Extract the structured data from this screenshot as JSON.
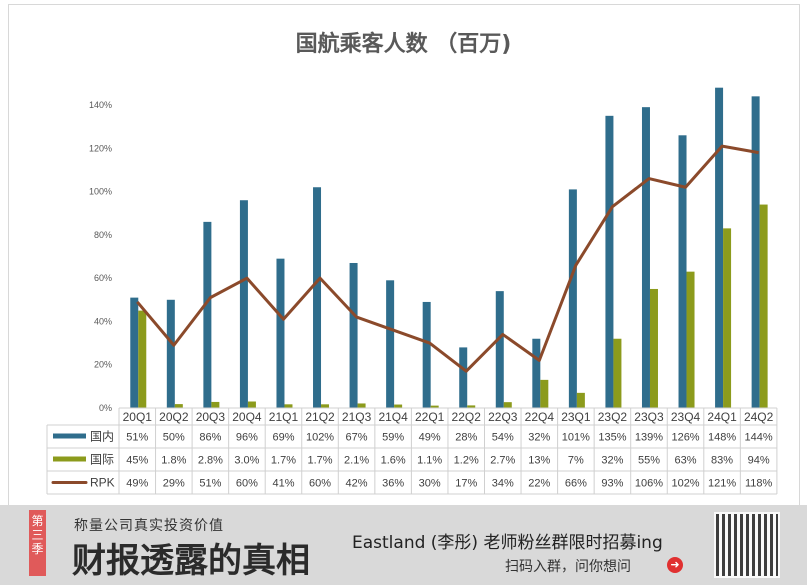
{
  "chart_data": {
    "type": "bar+line",
    "title": "国航乘客人数 （百万)",
    "categories": [
      "20Q1",
      "20Q2",
      "20Q3",
      "20Q4",
      "21Q1",
      "21Q2",
      "21Q3",
      "21Q4",
      "22Q1",
      "22Q2",
      "22Q3",
      "22Q4",
      "23Q1",
      "23Q2",
      "23Q3",
      "23Q4",
      "24Q1",
      "24Q2"
    ],
    "yticks": [
      "0%",
      "20%",
      "40%",
      "60%",
      "80%",
      "100%",
      "120%",
      "140%"
    ],
    "ylim": [
      0,
      140
    ],
    "grid": false,
    "legend_placement": "data-table",
    "series": [
      {
        "name": "国内",
        "type": "bar",
        "color": "#2f6d8c",
        "values": [
          51,
          50,
          86,
          96,
          69,
          102,
          67,
          59,
          49,
          28,
          54,
          32,
          101,
          135,
          139,
          126,
          148,
          144
        ],
        "labels": [
          "51%",
          "50%",
          "86%",
          "96%",
          "69%",
          "102%",
          "67%",
          "59%",
          "49%",
          "28%",
          "54%",
          "32%",
          "101%",
          "135%",
          "139%",
          "126%",
          "148%",
          "144%"
        ]
      },
      {
        "name": "国际",
        "type": "bar",
        "color": "#8c9b1c",
        "values": [
          45,
          1.8,
          2.8,
          3.0,
          1.7,
          1.7,
          2.1,
          1.6,
          1.1,
          1.2,
          2.7,
          13,
          7,
          32,
          55,
          63,
          83,
          94
        ],
        "labels": [
          "45%",
          "1.8%",
          "2.8%",
          "3.0%",
          "1.7%",
          "1.7%",
          "2.1%",
          "1.6%",
          "1.1%",
          "1.2%",
          "2.7%",
          "13%",
          "7%",
          "32%",
          "55%",
          "63%",
          "83%",
          "94%"
        ]
      },
      {
        "name": "RPK",
        "type": "line",
        "color": "#8b4a2b",
        "values": [
          49,
          29,
          51,
          60,
          41,
          60,
          42,
          36,
          30,
          17,
          34,
          22,
          66,
          93,
          106,
          102,
          121,
          118
        ],
        "labels": [
          "49%",
          "29%",
          "51%",
          "60%",
          "41%",
          "60%",
          "42%",
          "36%",
          "30%",
          "17%",
          "34%",
          "22%",
          "66%",
          "93%",
          "106%",
          "102%",
          "121%",
          "118%"
        ]
      }
    ]
  },
  "banner": {
    "season": "第三季",
    "subtitle": "称量公司真实投资价值",
    "headline": "财报透露的真相",
    "promo": "Eastland (李彤) 老师粉丝群限时招募ing",
    "scan": "扫码入群，问你想问",
    "arrow_icon": "arrow-right-circle-icon"
  }
}
